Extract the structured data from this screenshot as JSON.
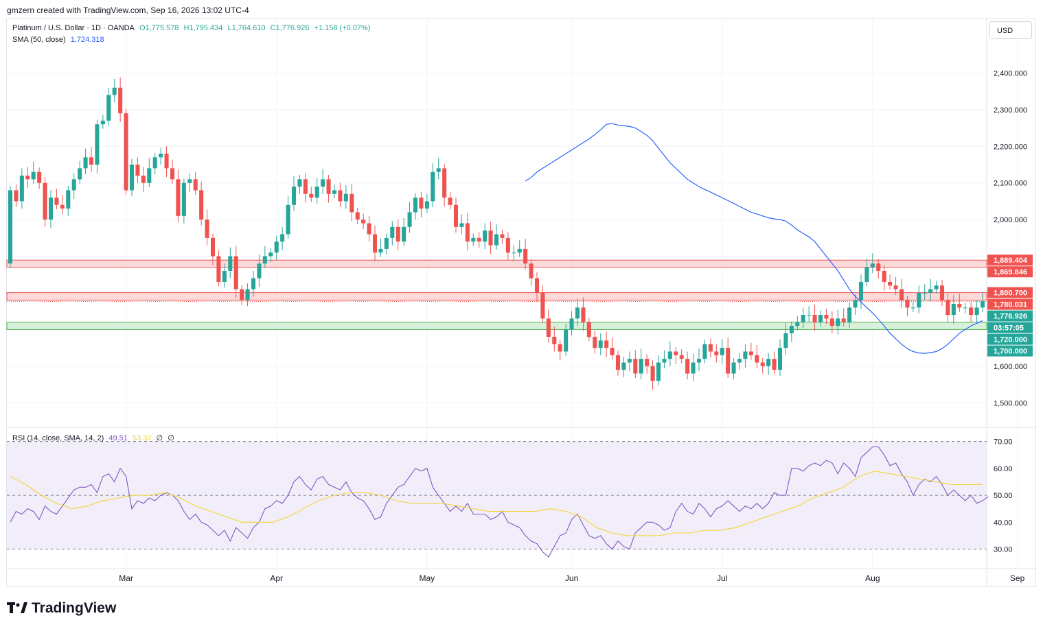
{
  "header": {
    "credit": "gmzern created with TradingView.com, Sep 16, 2026 13:02 UTC-4"
  },
  "legend": {
    "symbol": "Platinum / U.S. Dollar · 1D · OANDA",
    "open": "O1,775.578",
    "high": "H1,795.434",
    "low": "L1,764.610",
    "close": "C1,776.926",
    "change": "+1.158 (+0.07%)",
    "sma_label": "SMA (50, close)",
    "sma_value": "1,724.318",
    "rsi_label": "RSI (14, close, SMA, 14, 2)",
    "rsi_value": "49.51",
    "rsi_sma_value": "53.32",
    "rsi_extra1": "∅",
    "rsi_extra2": "∅"
  },
  "currency_button": "USD",
  "footer": {
    "brand": "TradingView"
  },
  "colors": {
    "up": "#26a69a",
    "down": "#ef5350",
    "sma": "#2962ff",
    "rsi": "#7e57c2",
    "rsi_sma": "#f2d43a",
    "resistance_zone": "#fcdada",
    "support_zone": "#d8f1db"
  },
  "chart_data": [
    {
      "type": "candlestick",
      "title": "Platinum / U.S. Dollar · 1D · OANDA",
      "x_labels": [
        "Mar",
        "Apr",
        "May",
        "Jun",
        "Jul",
        "Aug",
        "Sep"
      ],
      "x_label_index": [
        20,
        46,
        72,
        97,
        123,
        149,
        174
      ],
      "y_ticks": [
        "2,400.000",
        "2,300.000",
        "2,200.000",
        "2,100.000",
        "2,000.000",
        "1,600.000",
        "1,500.000"
      ],
      "y_tick_values": [
        2400,
        2300,
        2200,
        2100,
        2000,
        1600,
        1500
      ],
      "ylim": [
        1435,
        2515
      ],
      "close_series": [
        2080,
        2050,
        2120,
        2110,
        2130,
        2100,
        2000,
        2060,
        2040,
        2030,
        2080,
        2110,
        2140,
        2170,
        2150,
        2260,
        2270,
        2340,
        2360,
        2290,
        2080,
        2150,
        2120,
        2100,
        2140,
        2170,
        2180,
        2140,
        2110,
        2010,
        2100,
        2110,
        2080,
        2000,
        1950,
        1900,
        1830,
        1860,
        1900,
        1810,
        1780,
        1810,
        1840,
        1880,
        1900,
        1910,
        1940,
        1960,
        2040,
        2090,
        2110,
        2070,
        2060,
        2090,
        2110,
        2070,
        2080,
        2050,
        2070,
        2020,
        2000,
        1990,
        1960,
        1910,
        1920,
        1950,
        1980,
        1940,
        1980,
        2020,
        2060,
        2030,
        2050,
        2130,
        2140,
        2060,
        2040,
        1980,
        1990,
        1940,
        1950,
        1940,
        1970,
        1930,
        1960,
        1950,
        1910,
        1910,
        1920,
        1880,
        1840,
        1800,
        1730,
        1680,
        1660,
        1640,
        1700,
        1730,
        1760,
        1720,
        1680,
        1650,
        1670,
        1650,
        1630,
        1590,
        1610,
        1620,
        1580,
        1620,
        1600,
        1560,
        1610,
        1620,
        1640,
        1630,
        1620,
        1580,
        1610,
        1620,
        1660,
        1640,
        1630,
        1650,
        1580,
        1610,
        1620,
        1640,
        1630,
        1610,
        1600,
        1620,
        1590,
        1650,
        1690,
        1710,
        1720,
        1740,
        1740,
        1720,
        1740,
        1730,
        1710,
        1730,
        1720,
        1760,
        1780,
        1830,
        1870,
        1880,
        1860,
        1830,
        1820,
        1810,
        1780,
        1760,
        1760,
        1800,
        1800,
        1810,
        1820,
        1780,
        1740,
        1770,
        1760,
        1760,
        1740,
        1760,
        1776.9
      ],
      "sma_series": [
        2105,
        2115,
        2130,
        2140,
        2150,
        2160,
        2170,
        2180,
        2190,
        2200,
        2210,
        2220,
        2232,
        2245,
        2260,
        2262,
        2258,
        2256,
        2254,
        2250,
        2240,
        2230,
        2215,
        2195,
        2175,
        2155,
        2140,
        2125,
        2110,
        2100,
        2090,
        2082,
        2075,
        2067,
        2060,
        2052,
        2044,
        2036,
        2028,
        2020,
        2015,
        2010,
        2005,
        2002,
        2000,
        1996,
        1985,
        1972,
        1962,
        1953,
        1940,
        1920,
        1900,
        1880,
        1860,
        1835,
        1810,
        1790,
        1775,
        1760,
        1745,
        1728,
        1710,
        1690,
        1675,
        1660,
        1648,
        1640,
        1636,
        1635,
        1637,
        1640,
        1648,
        1660,
        1675,
        1690,
        1700,
        1710,
        1717,
        1724
      ],
      "series": [
        {
          "name": "SMA (50, close)"
        }
      ],
      "price_labels": [
        {
          "text": "1,889.404",
          "value": 1889.404,
          "color": "#ef5350"
        },
        {
          "text": "1,869.846",
          "value": 1869.846,
          "color": "#ef5350"
        },
        {
          "text": "1,800.700",
          "value": 1800.7,
          "color": "#ef5350"
        },
        {
          "text": "1,780.031",
          "value": 1780.031,
          "color": "#ef5350"
        },
        {
          "text": "1,776.926",
          "value": 1776.926,
          "color": "#26a69a"
        },
        {
          "text": "03:57:05",
          "value": 1752,
          "color": "#26a69a"
        },
        {
          "text": "1,720.000",
          "value": 1720,
          "color": "#26a69a"
        },
        {
          "text": "1,700.000",
          "value": 1700,
          "color": "#26a69a"
        }
      ],
      "zones": [
        {
          "low": 1869.846,
          "high": 1889.404,
          "kind": "resistance"
        },
        {
          "low": 1780.031,
          "high": 1800.7,
          "kind": "resistance"
        },
        {
          "low": 1700,
          "high": 1720,
          "kind": "support"
        }
      ]
    },
    {
      "type": "line",
      "title": "RSI (14, close, SMA, 14, 2)",
      "y_ticks": [
        "70.00",
        "60.00",
        "50.00",
        "40.00",
        "30.00"
      ],
      "y_tick_values": [
        70,
        60,
        50,
        40,
        30
      ],
      "ylim": [
        23,
        75
      ],
      "band": [
        30,
        70
      ],
      "rsi_series": [
        40,
        44,
        43,
        45,
        44,
        41,
        46,
        44,
        43,
        46,
        49,
        52,
        53,
        53,
        54,
        51,
        57,
        58,
        55,
        60,
        57,
        45,
        48,
        47,
        49,
        48,
        50,
        51,
        50,
        48,
        44,
        41,
        43,
        40,
        39,
        37,
        35,
        37,
        33,
        38,
        36,
        34,
        38,
        40,
        45,
        46,
        48,
        47,
        50,
        55,
        57,
        54,
        52,
        56,
        57,
        54,
        53,
        52,
        55,
        51,
        49,
        48,
        45,
        41,
        42,
        47,
        50,
        53,
        54,
        57,
        60,
        59,
        60,
        53,
        50,
        47,
        44,
        46,
        44,
        47,
        43,
        43,
        43,
        41,
        42,
        44,
        40,
        39,
        38,
        35,
        33,
        32,
        29,
        27,
        31,
        35,
        36,
        41,
        43,
        39,
        35,
        34,
        35,
        32,
        30,
        33,
        31,
        30,
        36,
        38,
        40,
        40,
        39,
        37,
        38,
        44,
        47,
        44,
        43,
        47,
        45,
        42,
        45,
        46,
        48,
        46,
        44,
        46,
        45,
        47,
        45,
        47,
        51,
        50,
        50,
        60,
        60,
        59,
        61,
        62,
        61,
        63,
        62,
        58,
        62,
        60,
        57,
        64,
        66,
        68,
        68,
        65,
        61,
        62,
        58,
        55,
        50,
        54,
        56,
        55,
        57,
        54,
        50,
        52,
        50,
        48,
        50,
        47,
        48,
        49.5
      ],
      "rsi_sma_series": [
        57,
        54,
        50,
        47,
        45,
        46,
        48,
        49,
        50,
        50,
        51,
        49,
        46,
        44,
        42,
        40,
        40,
        40,
        42,
        45,
        48,
        50,
        51,
        51,
        50,
        48,
        47,
        47,
        47,
        46,
        45,
        44,
        44,
        44,
        44,
        45,
        44,
        42,
        38,
        36,
        35,
        35,
        35,
        36,
        36,
        37,
        37,
        38,
        40,
        42,
        44,
        46,
        49,
        51,
        53,
        57,
        59,
        58,
        57,
        56,
        55,
        54,
        54,
        54
      ],
      "series": [
        {
          "name": "RSI (14, close, SMA, 14, 2)"
        }
      ]
    }
  ]
}
